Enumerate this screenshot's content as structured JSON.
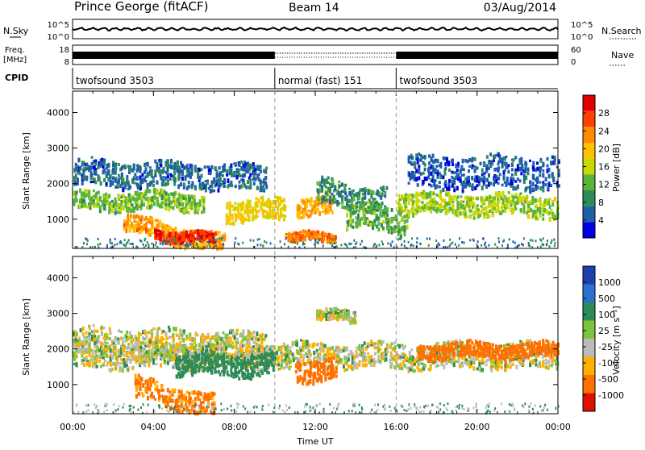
{
  "header": {
    "station": "Prince George (fitACF)",
    "beam": "Beam 14",
    "date": "03/Aug/2014"
  },
  "top_panels": {
    "nsky_label": "N.Sky",
    "nsky_ticks": [
      "10^5",
      "10^0"
    ],
    "nsearch_label": "N.Search",
    "nsearch_ticks": [
      "10^5",
      "10^0"
    ],
    "freq_label_1": "Freq.",
    "freq_label_2": "[MHz]",
    "freq_ticks": [
      "18",
      "8"
    ],
    "nave_label": "Nave",
    "nave_ticks": [
      "60",
      "0"
    ],
    "cpid_label": "CPID",
    "cpid_segments": [
      {
        "label": "twofsound 3503",
        "start_hour": 0,
        "end_hour": 10
      },
      {
        "label": "normal (fast) 151",
        "start_hour": 10,
        "end_hour": 16
      },
      {
        "label": "twofsound 3503",
        "start_hour": 16,
        "end_hour": 24
      }
    ]
  },
  "power_colorbar": {
    "title": "Power [dB]",
    "ticks": [
      "28",
      "24",
      "20",
      "16",
      "12",
      "8",
      "4"
    ],
    "colors": [
      "#e00000",
      "#ff4000",
      "#ff8c00",
      "#ffc000",
      "#c8d800",
      "#5ab43c",
      "#2e8b57",
      "#1f5faa",
      "#0000e0"
    ]
  },
  "velocity_colorbar": {
    "title": "Velocity [m s⁻¹]",
    "ticks": [
      "1000",
      "500",
      "100",
      "25",
      "-25",
      "-100",
      "-500",
      "-1000"
    ],
    "colors": [
      "#1f3fb0",
      "#2f6fd0",
      "#2e8b57",
      "#7cc43c",
      "#bbbbbb",
      "#ffb000",
      "#ff7000",
      "#e01000"
    ]
  },
  "chart_data": [
    {
      "type": "heatmap",
      "title": "Power",
      "ylabel": "Slant Range [km]",
      "xlabel": "Time UT",
      "x_ticks": [
        "00:00",
        "04:00",
        "08:00",
        "12:00",
        "16:00",
        "20:00",
        "00:00"
      ],
      "xlim_hours": [
        0,
        24
      ],
      "y_ticks": [
        1000,
        2000,
        3000,
        4000
      ],
      "ylim_km": [
        180,
        4600
      ],
      "color_scale": "Power [dB]",
      "cmin": 0,
      "cmax": 32,
      "features": [
        {
          "t0": 0.0,
          "t1": 9.6,
          "r_center": 2350,
          "r_width": 350,
          "power": 6,
          "drift": -150
        },
        {
          "t0": 0.0,
          "t1": 6.5,
          "r_center": 1550,
          "r_width": 250,
          "power": 13,
          "drift": 0
        },
        {
          "t0": 2.5,
          "t1": 7.5,
          "r_center": 950,
          "r_width": 250,
          "power": 22,
          "drift": -650
        },
        {
          "t0": 4.0,
          "t1": 7.0,
          "r_center": 650,
          "r_width": 150,
          "power": 28,
          "drift": -200
        },
        {
          "t0": 7.5,
          "t1": 10.5,
          "r_center": 1300,
          "r_width": 300,
          "power": 18,
          "drift": 0
        },
        {
          "t0": 11.0,
          "t1": 12.8,
          "r_center": 1400,
          "r_width": 250,
          "power": 21,
          "drift": 0
        },
        {
          "t0": 12.0,
          "t1": 15.5,
          "r_center": 1850,
          "r_width": 350,
          "power": 9,
          "drift": -300
        },
        {
          "t0": 10.5,
          "t1": 13.0,
          "r_center": 520,
          "r_width": 120,
          "power": 24,
          "drift": 0
        },
        {
          "t0": 13.5,
          "t1": 16.5,
          "r_center": 1150,
          "r_width": 350,
          "power": 12,
          "drift": -200
        },
        {
          "t0": 16.0,
          "t1": 24.0,
          "r_center": 1500,
          "r_width": 300,
          "power": 15,
          "drift": -100
        },
        {
          "t0": 16.5,
          "t1": 24.0,
          "r_center": 2350,
          "r_width": 450,
          "power": 5,
          "drift": 0
        }
      ]
    },
    {
      "type": "heatmap",
      "title": "Velocity",
      "ylabel": "Slant Range [km]",
      "xlabel": "Time UT",
      "x_ticks": [
        "00:00",
        "04:00",
        "08:00",
        "12:00",
        "16:00",
        "20:00",
        "00:00"
      ],
      "xlim_hours": [
        0,
        24
      ],
      "y_ticks": [
        1000,
        2000,
        3000,
        4000
      ],
      "ylim_km": [
        180,
        4600
      ],
      "color_scale": "Velocity [m s-1]",
      "cmin": -1000,
      "cmax": 1000,
      "features": [
        {
          "t0": 0.0,
          "t1": 9.6,
          "r_center": 2250,
          "r_width": 400,
          "velocity": 0,
          "drift": -150
        },
        {
          "t0": 0.0,
          "t1": 24.0,
          "r_center": 1850,
          "r_width": 350,
          "velocity": 0,
          "drift": 0
        },
        {
          "t0": 3.0,
          "t1": 7.0,
          "r_center": 950,
          "r_width": 300,
          "velocity": -150,
          "drift": -500
        },
        {
          "t0": 5.0,
          "t1": 10.0,
          "r_center": 1600,
          "r_width": 300,
          "velocity": 150,
          "drift": 0
        },
        {
          "t0": 11.0,
          "t1": 13.0,
          "r_center": 1450,
          "r_width": 300,
          "velocity": -200,
          "drift": 0
        },
        {
          "t0": 12.0,
          "t1": 14.0,
          "r_center": 2950,
          "r_width": 150,
          "velocity": 0,
          "drift": 0
        },
        {
          "t0": 17.0,
          "t1": 24.0,
          "r_center": 2000,
          "r_width": 200,
          "velocity": -200,
          "drift": 0
        }
      ]
    }
  ]
}
